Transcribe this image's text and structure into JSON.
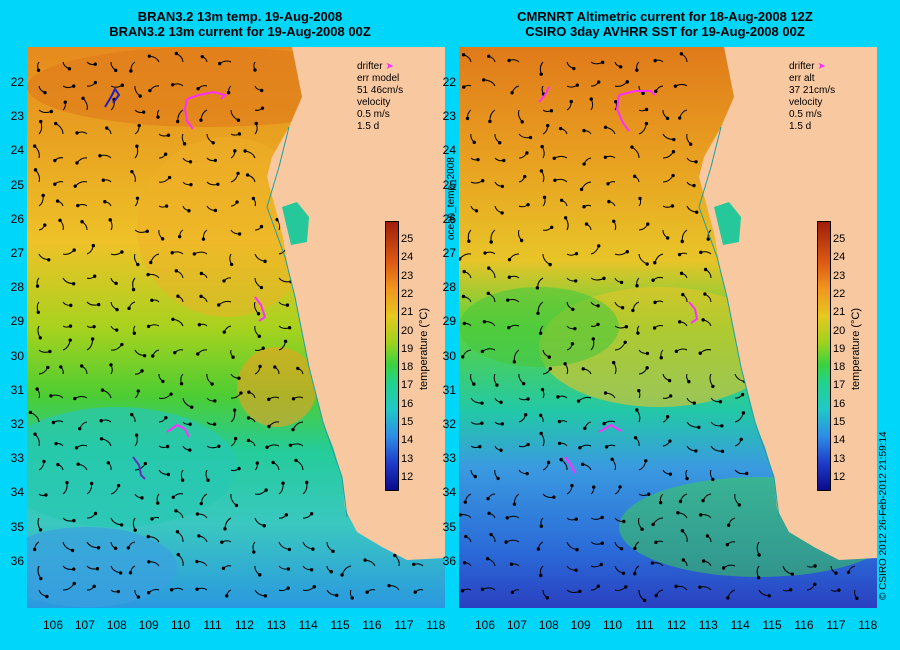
{
  "left": {
    "title_line1": "BRAN3.2 13m temp. 19-Aug-2008",
    "title_line2": "BRAN3.2 13m current for 19-Aug-2008 00Z",
    "legend": {
      "drifter": "drifter",
      "err_label": "err model",
      "err_value": "51 46cm/s",
      "velocity": "velocity",
      "scale": "0.5 m/s",
      "duration": "1.5 d"
    }
  },
  "right": {
    "title_line1": "CMRNRT Altimetric current for 18-Aug-2008 12Z",
    "title_line2": "CSIRO 3day AVHRR SST for 19-Aug-2008 00Z",
    "legend": {
      "drifter": "drifter",
      "err_label": "err alt",
      "err_value": "37 21cm/s",
      "velocity": "velocity",
      "scale": "0.5 m/s",
      "duration": "1.5 d"
    }
  },
  "map_side_label": "ocean_temp_2008",
  "credit": "© CSIRO 2012   26-Feb-2012 21:59:14",
  "colorbar": {
    "label": "temperature (°C)",
    "ticks": [
      "25",
      "24",
      "23",
      "22",
      "21",
      "20",
      "19",
      "18",
      "17",
      "16",
      "15",
      "14",
      "13",
      "12"
    ]
  },
  "lat_ticks": [
    "22",
    "23",
    "24",
    "25",
    "26",
    "27",
    "28",
    "29",
    "30",
    "31",
    "32",
    "33",
    "34",
    "35",
    "36"
  ],
  "lon_ticks": [
    "106",
    "107",
    "108",
    "109",
    "110",
    "111",
    "112",
    "113",
    "114",
    "115",
    "116",
    "117",
    "118"
  ],
  "colors": {
    "background": "#00d6fa",
    "land": "#f8c8a0",
    "drifter": "#ff30ff",
    "vector": "#000000"
  }
}
